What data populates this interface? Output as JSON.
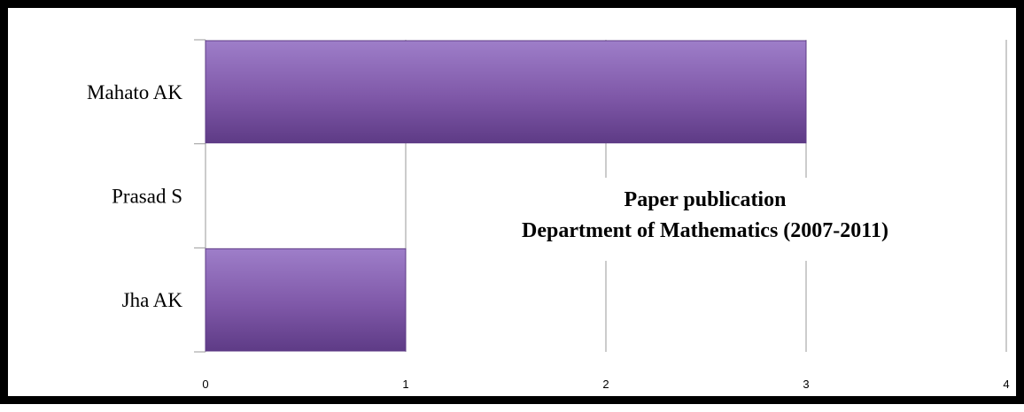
{
  "chart_data": {
    "type": "bar",
    "orientation": "horizontal",
    "title": "Paper publication",
    "subtitle": "Department of Mathematics (2007-2011)",
    "categories": [
      "Mahato AK",
      "Prasad S",
      "Jha AK"
    ],
    "values": [
      3,
      0,
      1
    ],
    "xlabel": "",
    "ylabel": "",
    "xlim": [
      0,
      4
    ],
    "xticks": [
      "0",
      "1",
      "2",
      "3",
      "4"
    ],
    "grid": "vertical",
    "legend": "none",
    "colors": {
      "bar": "#7f58a8",
      "bar_light": "#9e7ec9",
      "bar_dark": "#5e3b86",
      "grid": "#9a9a9a",
      "frame": "#000000"
    }
  }
}
